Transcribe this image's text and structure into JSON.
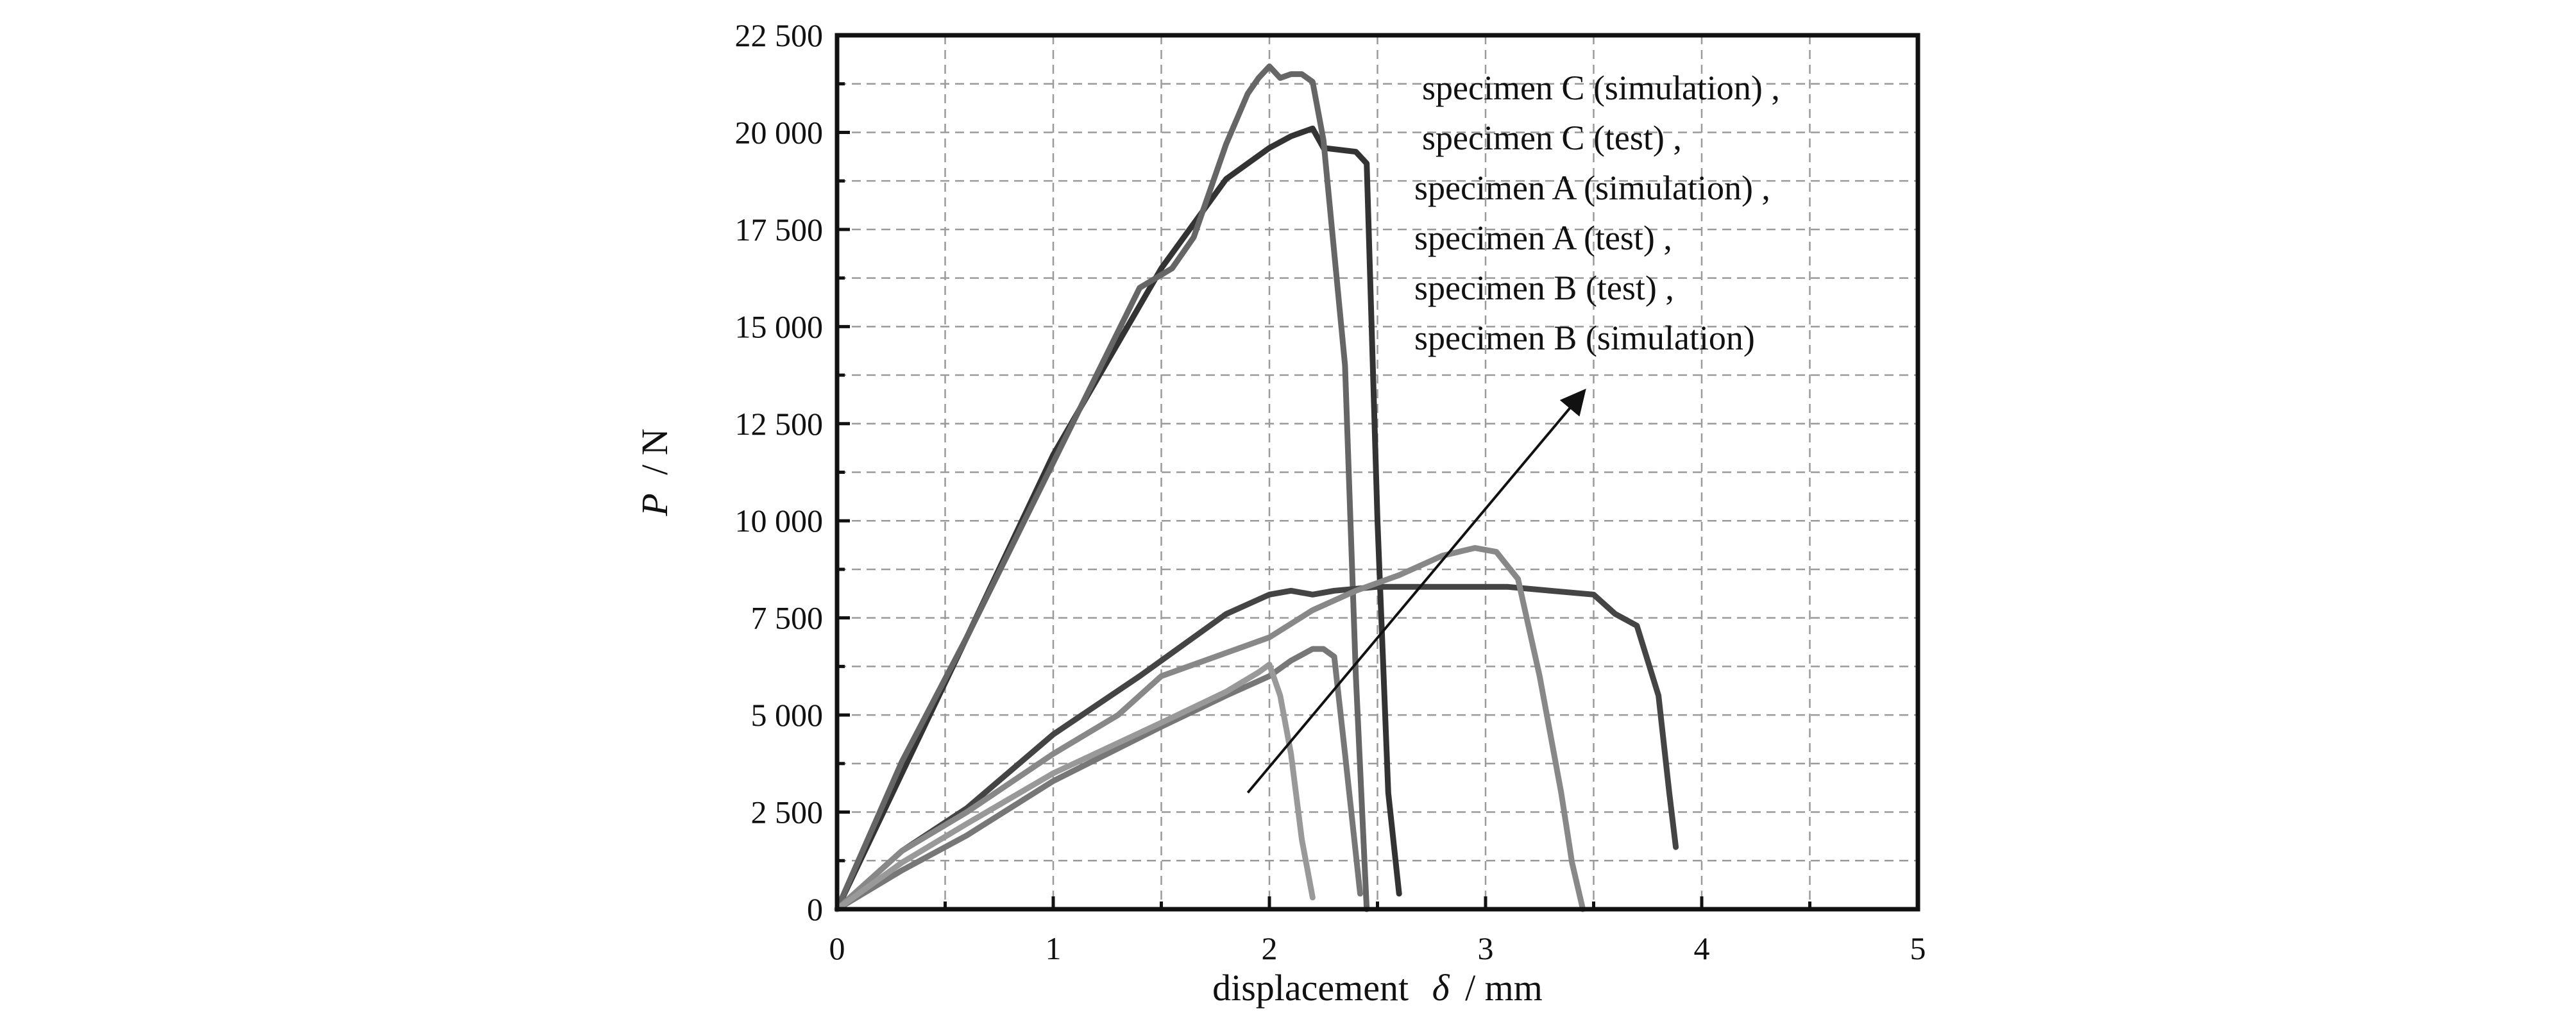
{
  "chart_data": {
    "type": "line",
    "title": "",
    "xlabel_main": "displacement",
    "xlabel_symbol": "δ",
    "xlabel_unit": "/ mm",
    "ylabel_symbol": "P",
    "ylabel_unit": "/ N",
    "xlim": [
      0,
      5
    ],
    "ylim": [
      0,
      22500
    ],
    "x_ticks": [
      0,
      1,
      2,
      3,
      4,
      5
    ],
    "x_tick_labels": [
      "0",
      "1",
      "2",
      "3",
      "4",
      "5"
    ],
    "y_ticks": [
      0,
      2500,
      5000,
      7500,
      10000,
      12500,
      15000,
      17500,
      20000,
      22500
    ],
    "y_tick_labels": [
      "0",
      "2 500",
      "5 000",
      "7 500",
      "10 000",
      "12 500",
      "15 000",
      "17 500",
      "20 000",
      "22 500"
    ],
    "grid": true,
    "legend_placement": "top-right",
    "legend_entries": [
      "specimen C (simulation) ,",
      "specimen C (test) ,",
      "specimen A (simulation) ,",
      "specimen A (test) ,",
      "specimen B (test) ,",
      "specimen B (simulation)"
    ],
    "arrow": {
      "from": [
        1.9,
        3000
      ],
      "to": [
        3.45,
        13300
      ]
    },
    "series": [
      {
        "color": "#333333",
        "x": [
          0,
          0.3,
          0.6,
          1.0,
          1.5,
          1.8,
          2.0,
          2.1,
          2.2,
          2.25,
          2.4,
          2.45,
          2.5,
          2.55,
          2.6
        ],
        "y": [
          0,
          3500,
          7000,
          11700,
          16500,
          18800,
          19600,
          19900,
          20100,
          19600,
          19500,
          19200,
          10000,
          3000,
          400
        ]
      },
      {
        "color": "#666666",
        "x": [
          0,
          0.3,
          0.6,
          1.0,
          1.4,
          1.55,
          1.65,
          1.8,
          1.9,
          1.95,
          2.0,
          2.05,
          2.1,
          2.15,
          2.2,
          2.25,
          2.35,
          2.4,
          2.45
        ],
        "y": [
          0,
          3800,
          7000,
          11500,
          16000,
          16500,
          17300,
          19700,
          21000,
          21400,
          21700,
          21400,
          21500,
          21500,
          21300,
          19800,
          14000,
          6000,
          0
        ]
      },
      {
        "color": "#444444",
        "x": [
          0,
          0.3,
          0.6,
          1.0,
          1.4,
          1.8,
          2.0,
          2.1,
          2.2,
          2.3,
          2.5,
          2.7,
          2.9,
          3.1,
          3.3,
          3.5,
          3.6,
          3.7,
          3.8,
          3.85,
          3.88
        ],
        "y": [
          0,
          1500,
          2600,
          4500,
          6000,
          7600,
          8100,
          8200,
          8100,
          8200,
          8300,
          8300,
          8300,
          8300,
          8200,
          8100,
          7600,
          7300,
          5500,
          3000,
          1600
        ]
      },
      {
        "color": "#888888",
        "x": [
          0,
          0.3,
          0.6,
          1.0,
          1.3,
          1.5,
          1.8,
          2.0,
          2.2,
          2.4,
          2.6,
          2.8,
          2.95,
          3.05,
          3.15,
          3.25,
          3.35,
          3.4,
          3.45
        ],
        "y": [
          0,
          1500,
          2500,
          4000,
          5000,
          6000,
          6600,
          7000,
          7700,
          8200,
          8600,
          9100,
          9300,
          9200,
          8500,
          6000,
          3000,
          1200,
          0
        ]
      },
      {
        "color": "#777777",
        "x": [
          0,
          0.3,
          0.6,
          1.0,
          1.5,
          1.8,
          2.0,
          2.1,
          2.2,
          2.25,
          2.3,
          2.35,
          2.42
        ],
        "y": [
          0,
          1000,
          1900,
          3300,
          4700,
          5500,
          6000,
          6400,
          6700,
          6700,
          6500,
          4000,
          400
        ]
      },
      {
        "color": "#999999",
        "x": [
          0,
          0.3,
          0.6,
          1.0,
          1.5,
          1.8,
          1.95,
          2.0,
          2.05,
          2.1,
          2.15,
          2.2
        ],
        "y": [
          0,
          1200,
          2200,
          3500,
          4800,
          5600,
          6100,
          6300,
          5500,
          4000,
          1800,
          300
        ]
      }
    ]
  }
}
